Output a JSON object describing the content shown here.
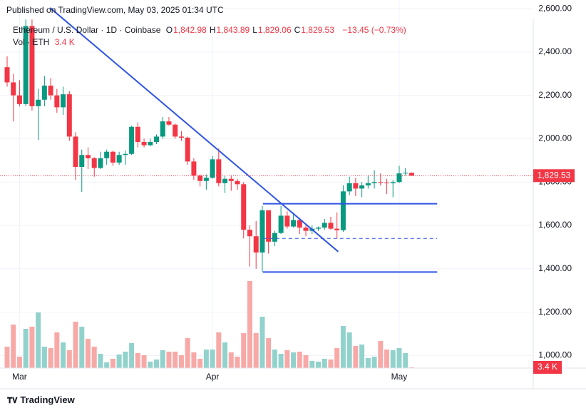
{
  "header": "Published on TradingView.com, May 03, 2025 01:34 UTC",
  "brand": "TradingView",
  "chart_data": {
    "type": "candlestick",
    "legend": {
      "symbol": "Ethereum / U.S. Dollar · 1D · Coinbase",
      "color": "#f23645",
      "items": [
        {
          "label": "O",
          "value": "1,842.98"
        },
        {
          "label": "H",
          "value": "1,843.89"
        },
        {
          "label": "L",
          "value": "1,829.06"
        },
        {
          "label": "C",
          "value": "1,829.53"
        }
      ],
      "change": "−13.45 (−0.73%)"
    },
    "volume_legend": {
      "label": "Vol · ETH",
      "value": "3.4 K"
    },
    "up_color": "#089981",
    "down_color": "#f23645",
    "volume_up_color": "#92d2cc",
    "volume_down_color": "#f7a9a7",
    "ohlc": [
      [
        2330,
        2380,
        2240,
        2260
      ],
      [
        2260,
        2300,
        2080,
        2200
      ],
      [
        2200,
        2270,
        2150,
        2160
      ],
      [
        2160,
        2550,
        2150,
        2520
      ],
      [
        2520,
        2550,
        2130,
        2150
      ],
      [
        2150,
        2230,
        1995,
        2180
      ],
      [
        2180,
        2290,
        2150,
        2245
      ],
      [
        2245,
        2280,
        2180,
        2200
      ],
      [
        2200,
        2230,
        2120,
        2145
      ],
      [
        2145,
        2240,
        2110,
        2205
      ],
      [
        2205,
        2220,
        1990,
        2010
      ],
      [
        2010,
        2030,
        1810,
        1870
      ],
      [
        1870,
        1950,
        1755,
        1925
      ],
      [
        1925,
        1960,
        1860,
        1910
      ],
      [
        1910,
        1915,
        1825,
        1865
      ],
      [
        1865,
        1940,
        1860,
        1910
      ],
      [
        1910,
        1950,
        1880,
        1940
      ],
      [
        1940,
        1945,
        1875,
        1890
      ],
      [
        1890,
        1940,
        1880,
        1925
      ],
      [
        1925,
        1945,
        1880,
        1930
      ],
      [
        1930,
        2060,
        1925,
        2055
      ],
      [
        2055,
        2075,
        1960,
        1985
      ],
      [
        1985,
        2000,
        1960,
        1970
      ],
      [
        1970,
        2000,
        1965,
        1985
      ],
      [
        1985,
        2020,
        1975,
        2010
      ],
      [
        2010,
        2100,
        2000,
        2080
      ],
      [
        2080,
        2100,
        2060,
        2065
      ],
      [
        2065,
        2070,
        2000,
        2010
      ],
      [
        2010,
        2035,
        1990,
        2005
      ],
      [
        2005,
        2010,
        1880,
        1895
      ],
      [
        1895,
        1910,
        1810,
        1830
      ],
      [
        1830,
        1835,
        1780,
        1805
      ],
      [
        1805,
        1835,
        1765,
        1820
      ],
      [
        1820,
        1920,
        1815,
        1905
      ],
      [
        1905,
        1955,
        1780,
        1795
      ],
      [
        1795,
        1830,
        1750,
        1815
      ],
      [
        1815,
        1830,
        1760,
        1805
      ],
      [
        1805,
        1815,
        1765,
        1790
      ],
      [
        1790,
        1800,
        1540,
        1580
      ],
      [
        1580,
        1600,
        1410,
        1550
      ],
      [
        1550,
        1620,
        1400,
        1475
      ],
      [
        1475,
        1690,
        1385,
        1670
      ],
      [
        1670,
        1670,
        1470,
        1525
      ],
      [
        1525,
        1575,
        1505,
        1565
      ],
      [
        1565,
        1690,
        1560,
        1645
      ],
      [
        1645,
        1665,
        1585,
        1595
      ],
      [
        1595,
        1660,
        1590,
        1625
      ],
      [
        1625,
        1635,
        1560,
        1590
      ],
      [
        1590,
        1600,
        1550,
        1575
      ],
      [
        1575,
        1600,
        1560,
        1585
      ],
      [
        1585,
        1595,
        1575,
        1590
      ],
      [
        1590,
        1630,
        1580,
        1612
      ],
      [
        1612,
        1640,
        1580,
        1585
      ],
      [
        1585,
        1660,
        1540,
        1578
      ],
      [
        1578,
        1785,
        1570,
        1757
      ],
      [
        1757,
        1825,
        1740,
        1795
      ],
      [
        1795,
        1820,
        1735,
        1770
      ],
      [
        1770,
        1800,
        1730,
        1785
      ],
      [
        1785,
        1830,
        1770,
        1795
      ],
      [
        1795,
        1855,
        1770,
        1800
      ],
      [
        1800,
        1840,
        1785,
        1798
      ],
      [
        1798,
        1815,
        1745,
        1795
      ],
      [
        1795,
        1810,
        1730,
        1800
      ],
      [
        1800,
        1875,
        1795,
        1840
      ],
      [
        1840,
        1865,
        1830,
        1843
      ],
      [
        1842.98,
        1843.89,
        1829.06,
        1829.53
      ]
    ],
    "volume": [
      120,
      244,
      64,
      220,
      232,
      312,
      120,
      112,
      200,
      144,
      100,
      260,
      232,
      164,
      120,
      80,
      32,
      52,
      76,
      92,
      140,
      84,
      72,
      36,
      48,
      100,
      92,
      92,
      72,
      168,
      88,
      52,
      104,
      104,
      200,
      144,
      88,
      64,
      196,
      488,
      196,
      288,
      168,
      104,
      80,
      100,
      88,
      92,
      72,
      40,
      36,
      52,
      48,
      112,
      236,
      200,
      124,
      132,
      56,
      64,
      152,
      104,
      100,
      112,
      84,
      3.4
    ],
    "xticks": [
      {
        "value": 2,
        "label": "Mar"
      },
      {
        "value": 33,
        "label": "Apr"
      },
      {
        "value": 63,
        "label": "May"
      }
    ],
    "ylim": [
      965,
      2640
    ],
    "yticks": [
      {
        "value": 1000,
        "label": "1,000.00"
      },
      {
        "value": 1200,
        "label": "1,200.00"
      },
      {
        "value": 1400,
        "label": "1,400.00"
      },
      {
        "value": 1600,
        "label": "1,600.00"
      },
      {
        "value": 1800,
        "label": "1,800.00"
      },
      {
        "value": 2000,
        "label": "2,000.00"
      },
      {
        "value": 2200,
        "label": "2,200.00"
      },
      {
        "value": 2400,
        "label": "2,400.00"
      },
      {
        "value": 2600,
        "label": "2,600.00"
      }
    ],
    "grid": true,
    "drawings": {
      "color": "#2f55e4",
      "trendline": {
        "x": [
          6.9,
          53.2
        ],
        "y": [
          2604,
          1479
        ]
      },
      "levels": [
        {
          "y": 1700,
          "x": [
            41.1,
            69.1
          ],
          "style": "solid"
        },
        {
          "y": 1385,
          "x": [
            41.1,
            69.1
          ],
          "style": "solid"
        },
        {
          "y": 1540,
          "x": [
            41.1,
            69.1
          ],
          "style": "dashed"
        }
      ]
    }
  }
}
